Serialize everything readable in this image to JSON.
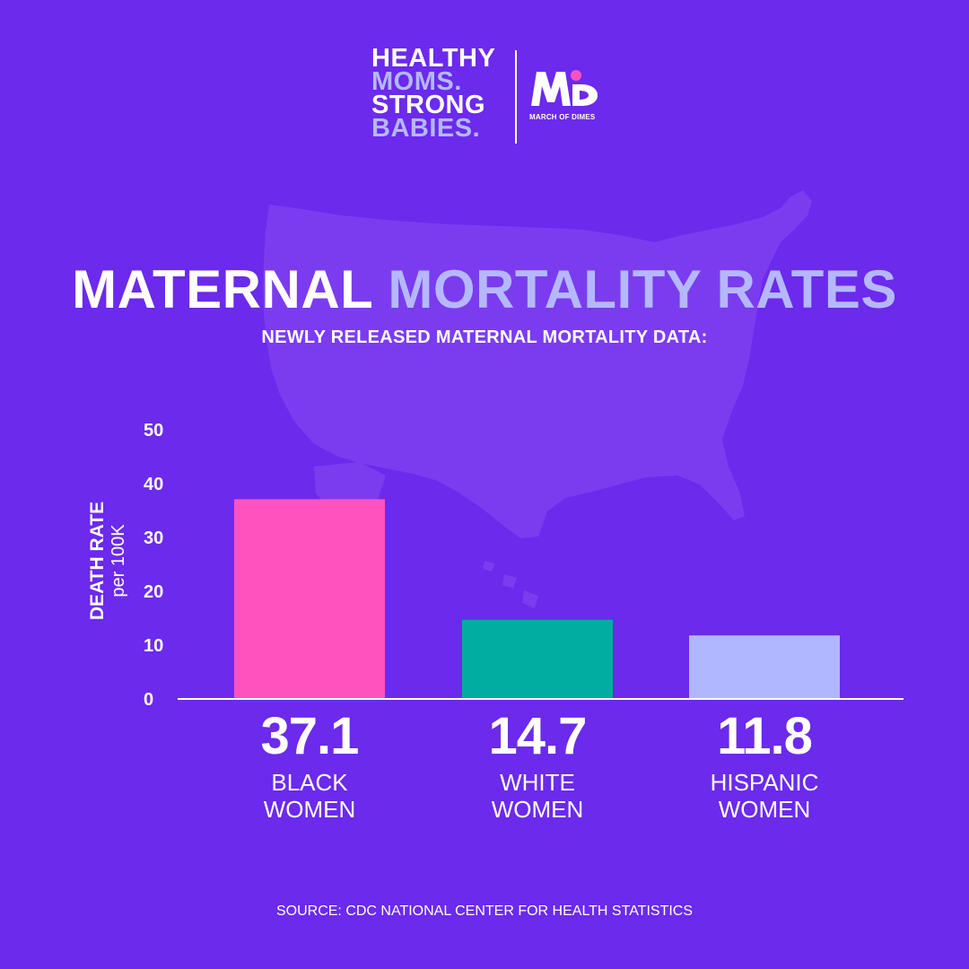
{
  "logo": {
    "tagline": [
      "HEALTHY",
      "MOMS.",
      "STRONG",
      "BABIES."
    ],
    "org_name": "MARCH OF DIMES"
  },
  "colors": {
    "background": "#6b2aec",
    "map": "#7b3cf0",
    "lavender": "#b5b8ff",
    "pink": "#ff52bf",
    "teal": "#00ad9f",
    "periwinkle": "#b1b7ff"
  },
  "chart_data": {
    "type": "bar",
    "title_part1": "MATERNAL",
    "title_part2": "MORTALITY RATES",
    "subtitle": "NEWLY RELEASED MATERNAL MORTALITY DATA:",
    "ylabel": "DEATH RATE",
    "ylabel_unit": "per 100K",
    "ylim": [
      0,
      50
    ],
    "yticks": [
      0,
      10,
      20,
      30,
      40,
      50
    ],
    "categories": [
      {
        "line1": "BLACK",
        "line2": "WOMEN",
        "value": 37.1,
        "value_label": "37.1",
        "color": "#ff52bf"
      },
      {
        "line1": "WHITE",
        "line2": "WOMEN",
        "value": 14.7,
        "value_label": "14.7",
        "color": "#00ad9f"
      },
      {
        "line1": "HISPANIC",
        "line2": "WOMEN",
        "value": 11.8,
        "value_label": "11.8",
        "color": "#b1b7ff"
      }
    ]
  },
  "source": "SOURCE: CDC NATIONAL CENTER FOR HEALTH STATISTICS"
}
